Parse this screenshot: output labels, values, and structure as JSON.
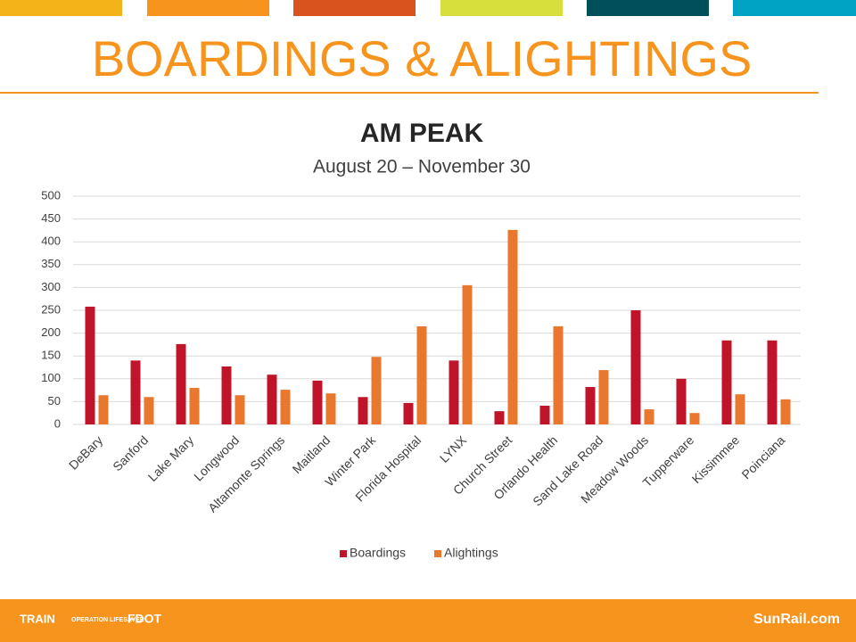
{
  "slide_title": "BOARDINGS & ALIGHTINGS",
  "footer": {
    "logos": [
      "TRAIN",
      "OPERATION LIFESAVER",
      "FDOT"
    ],
    "site": "SunRail.com"
  },
  "chart_data": {
    "type": "bar",
    "title": "AM PEAK",
    "subtitle": "August 20 – November 30",
    "categories": [
      "DeBary",
      "Sanford",
      "Lake Mary",
      "Longwood",
      "Altamonte Springs",
      "Maitland",
      "Winter Park",
      "Florida Hospital",
      "LYNX",
      "Church Street",
      "Orlando Health",
      "Sand Lake Road",
      "Meadow Woods",
      "Tupperware",
      "Kissimmee",
      "Poinciana"
    ],
    "series": [
      {
        "name": "Boardings",
        "color": "#c0142b",
        "values": [
          258,
          140,
          176,
          127,
          109,
          96,
          60,
          47,
          140,
          29,
          41,
          82,
          250,
          100,
          184,
          184
        ]
      },
      {
        "name": "Alightings",
        "color": "#e9772e",
        "values": [
          64,
          60,
          80,
          64,
          76,
          68,
          148,
          215,
          305,
          426,
          215,
          119,
          33,
          25,
          66,
          55
        ]
      }
    ],
    "ylim": [
      0,
      500
    ],
    "yticks": [
      0,
      50,
      100,
      150,
      200,
      250,
      300,
      350,
      400,
      450,
      500
    ],
    "grid": true,
    "legend": "bottom"
  }
}
